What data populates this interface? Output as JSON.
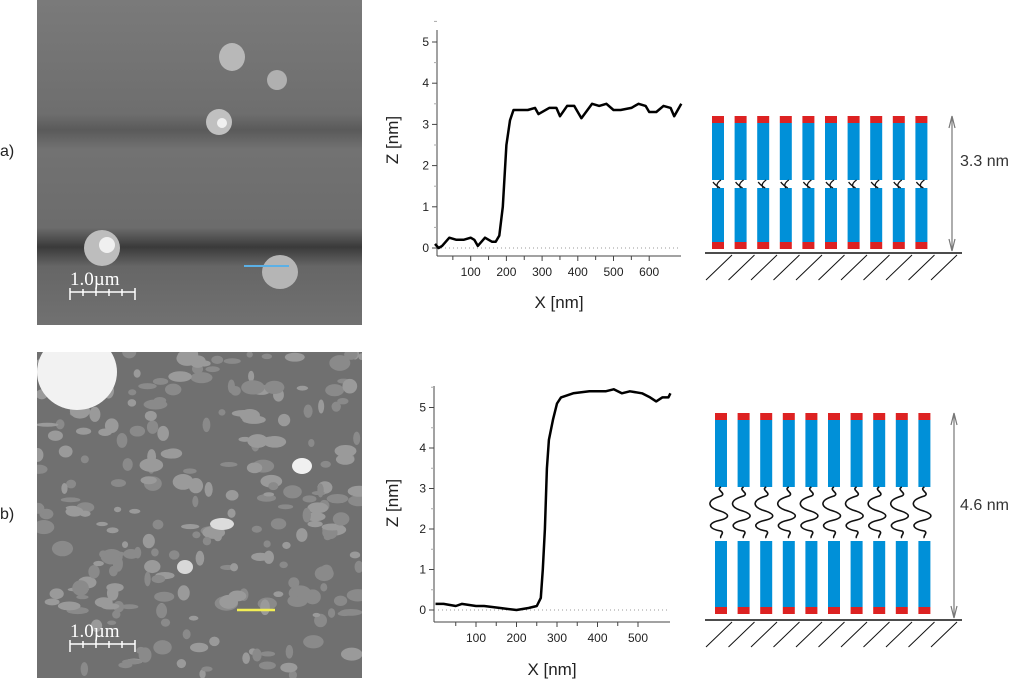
{
  "panels": [
    {
      "label": "a)",
      "afm": {
        "scale_bar": "1.0µm",
        "line_color": "#5bb0e6"
      },
      "model": {
        "height_label": "3.3 nm",
        "linker": "hook"
      }
    },
    {
      "label": "b)",
      "afm": {
        "scale_bar": "1.0µm",
        "line_color": "#f2ee55"
      },
      "model": {
        "height_label": "4.6 nm",
        "linker": "wavy"
      }
    }
  ],
  "colors": {
    "molecule_body": "#0090d8",
    "molecule_head": "#dd2222"
  },
  "chart_data": [
    {
      "type": "line",
      "xlabel": "X [nm]",
      "ylabel": "Z [nm]",
      "xlim": [
        0,
        690
      ],
      "ylim": [
        -0.2,
        5.5
      ],
      "xticks": [
        100,
        200,
        300,
        400,
        500,
        600
      ],
      "yticks": [
        0,
        1,
        2,
        3,
        4,
        5
      ],
      "x": [
        0,
        10,
        20,
        40,
        60,
        80,
        100,
        110,
        120,
        140,
        160,
        170,
        180,
        190,
        200,
        210,
        220,
        260,
        280,
        290,
        320,
        340,
        350,
        370,
        390,
        410,
        440,
        460,
        480,
        500,
        520,
        550,
        570,
        590,
        600,
        620,
        640,
        660,
        670,
        690
      ],
      "y": [
        0.1,
        0,
        0.05,
        0.25,
        0.2,
        0.2,
        0.25,
        0.2,
        0.05,
        0.25,
        0.15,
        0.15,
        0.3,
        1.0,
        2.5,
        3.1,
        3.35,
        3.35,
        3.4,
        3.25,
        3.4,
        3.4,
        3.2,
        3.45,
        3.45,
        3.15,
        3.5,
        3.45,
        3.5,
        3.35,
        3.35,
        3.4,
        3.5,
        3.45,
        3.3,
        3.3,
        3.45,
        3.4,
        3.2,
        3.5
      ]
    },
    {
      "type": "line",
      "xlabel": "X [nm]",
      "ylabel": "Z [nm]",
      "xlim": [
        0,
        580
      ],
      "ylim": [
        -0.3,
        5.5
      ],
      "xticks": [
        100,
        200,
        300,
        400,
        500
      ],
      "yticks": [
        0,
        1,
        2,
        3,
        4,
        5
      ],
      "x": [
        0,
        20,
        50,
        65,
        100,
        120,
        160,
        200,
        230,
        250,
        260,
        265,
        270,
        275,
        280,
        290,
        300,
        310,
        340,
        380,
        420,
        440,
        460,
        480,
        510,
        530,
        545,
        560,
        575,
        580
      ],
      "y": [
        0.15,
        0.15,
        0.1,
        0.15,
        0.1,
        0.1,
        0.05,
        0,
        0.05,
        0.1,
        0.3,
        1.0,
        2.0,
        3.5,
        4.2,
        4.7,
        5.1,
        5.25,
        5.35,
        5.4,
        5.4,
        5.45,
        5.35,
        5.4,
        5.35,
        5.25,
        5.15,
        5.25,
        5.25,
        5.35
      ]
    }
  ]
}
